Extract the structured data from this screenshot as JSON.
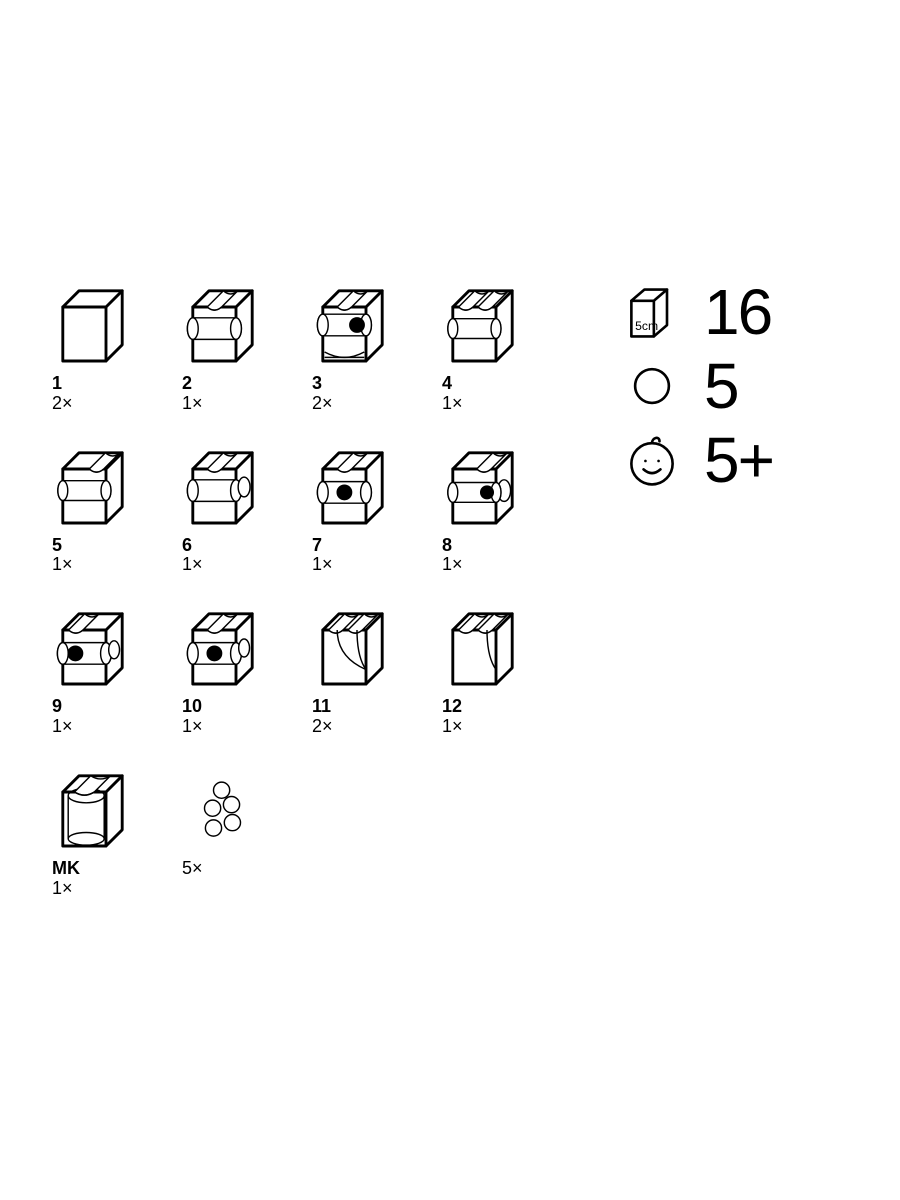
{
  "colors": {
    "stroke": "#000000",
    "stroke_thin": "#000000",
    "fill_bg": "#ffffff",
    "marble_fill": "#000000"
  },
  "stroke_width_outer": 3.2,
  "stroke_width_inner": 1.6,
  "parts": [
    {
      "id": "1",
      "qty": "2×",
      "variant": "plain"
    },
    {
      "id": "2",
      "qty": "1×",
      "variant": "tunnel_straight"
    },
    {
      "id": "3",
      "qty": "2×",
      "variant": "tunnel_ball_tray"
    },
    {
      "id": "4",
      "qty": "1×",
      "variant": "double_notch_tunnel"
    },
    {
      "id": "5",
      "qty": "1×",
      "variant": "notch_right_tunnel"
    },
    {
      "id": "6",
      "qty": "1×",
      "variant": "tunnel_open"
    },
    {
      "id": "7",
      "qty": "1×",
      "variant": "tunnel_ball_front"
    },
    {
      "id": "8",
      "qty": "1×",
      "variant": "tunnel_ball_right"
    },
    {
      "id": "9",
      "qty": "1×",
      "variant": "tunnel_ball_left_notch"
    },
    {
      "id": "10",
      "qty": "1×",
      "variant": "tunnel_ball_angled"
    },
    {
      "id": "11",
      "qty": "2×",
      "variant": "curve_double_notch"
    },
    {
      "id": "12",
      "qty": "1×",
      "variant": "curve_single_notch"
    },
    {
      "id": "MK",
      "qty": "1×",
      "variant": "collector"
    },
    {
      "id": "",
      "qty": "5×",
      "variant": "marbles"
    }
  ],
  "summary": {
    "cube_size_label": "5cm",
    "cube_count": "16",
    "marble_count": "5",
    "age": "5+"
  }
}
